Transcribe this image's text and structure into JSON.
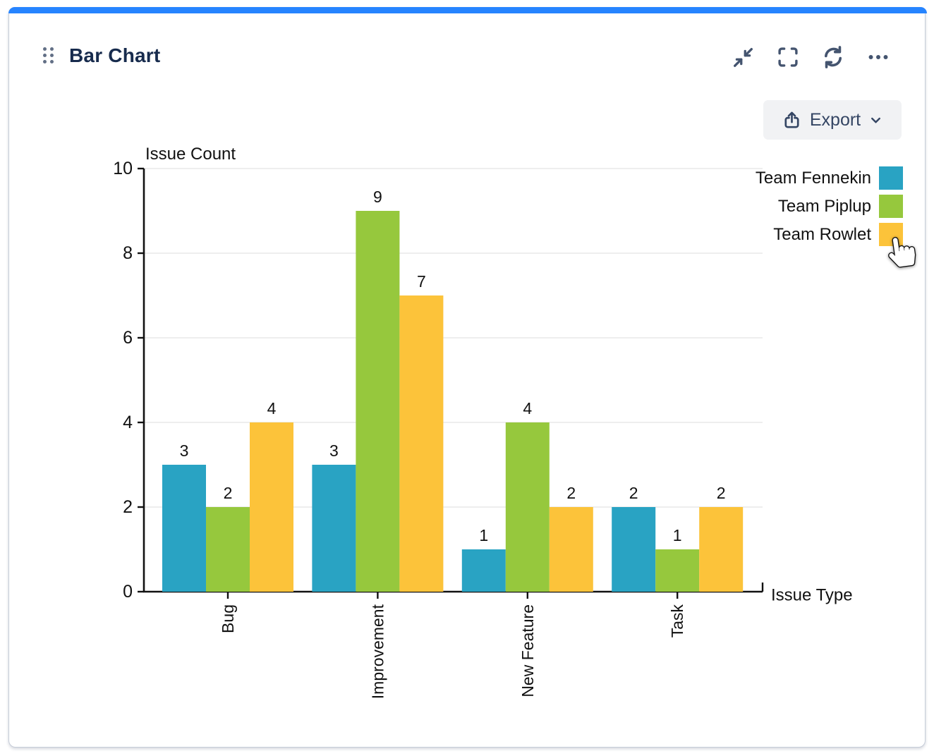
{
  "gadget": {
    "title": "Bar Chart"
  },
  "toolbar": {
    "icons": [
      "collapse-icon",
      "fullscreen-icon",
      "refresh-icon",
      "more-icon"
    ]
  },
  "export_button": {
    "label": "Export",
    "icons": [
      "export-share-icon",
      "chevron-down-icon"
    ]
  },
  "legend": {
    "position": "right",
    "cursor": "hand-pointer over Team Rowlet swatch"
  },
  "chart_data": {
    "type": "bar",
    "title": "",
    "categories": [
      "Bug",
      "Improvement",
      "New Feature",
      "Task"
    ],
    "series": [
      {
        "name": "Team Fennekin",
        "color": "#29A3C3",
        "values": [
          3,
          3,
          1,
          2
        ]
      },
      {
        "name": "Team Piplup",
        "color": "#96C83D",
        "values": [
          2,
          9,
          4,
          1
        ]
      },
      {
        "name": "Team Rowlet",
        "color": "#FCC33A",
        "values": [
          4,
          7,
          2,
          2
        ]
      }
    ],
    "xlabel": "Issue Type",
    "ylabel": "Issue Count",
    "ylim": [
      0,
      10
    ],
    "yticks": [
      0,
      2,
      4,
      6,
      8,
      10
    ],
    "grid": true,
    "bar_labels": true,
    "legend_position": "right",
    "category_label_rotation": -90
  },
  "colors": {
    "accent_bar": "#2684FF",
    "title_text": "#172B4D",
    "header_icon": "#44546F",
    "export_bg": "#F1F2F4",
    "export_text": "#344563",
    "grid_line": "#E9E9E9",
    "axis": "#111111",
    "legend_text": "#111111"
  }
}
